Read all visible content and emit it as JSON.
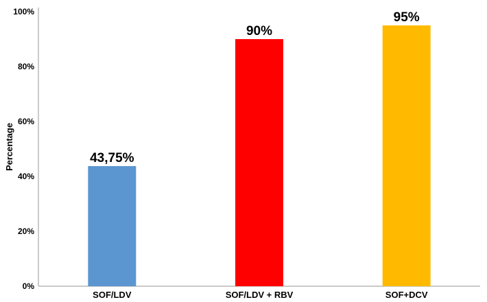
{
  "chart_data": {
    "type": "bar",
    "categories": [
      "SOF/LDV",
      "SOF/LDV + RBV",
      "SOF+DCV"
    ],
    "values": [
      43.75,
      90,
      95
    ],
    "value_labels": [
      "43,75%",
      "90%",
      "95%"
    ],
    "colors": [
      "#5b96d0",
      "#ff0000",
      "#ffba00"
    ],
    "title": "",
    "xlabel": "",
    "ylabel": "Percentage",
    "ylim": [
      0,
      100
    ],
    "yticks": [
      0,
      20,
      40,
      60,
      80,
      100
    ],
    "ytick_labels": [
      "0%",
      "20%",
      "40%",
      "60%",
      "80%",
      "100%"
    ],
    "grid": false,
    "legend": "none"
  }
}
